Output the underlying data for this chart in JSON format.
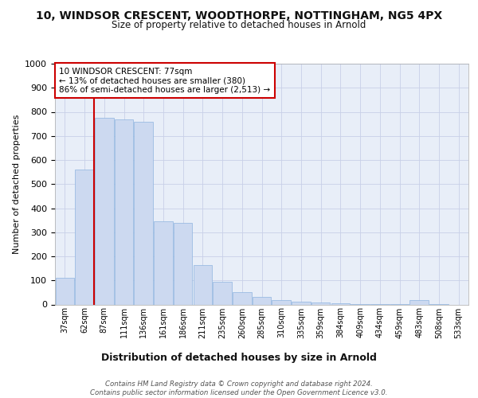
{
  "title_line1": "10, WINDSOR CRESCENT, WOODTHORPE, NOTTINGHAM, NG5 4PX",
  "title_line2": "Size of property relative to detached houses in Arnold",
  "xlabel": "Distribution of detached houses by size in Arnold",
  "ylabel": "Number of detached properties",
  "categories": [
    "37sqm",
    "62sqm",
    "87sqm",
    "111sqm",
    "136sqm",
    "161sqm",
    "186sqm",
    "211sqm",
    "235sqm",
    "260sqm",
    "285sqm",
    "310sqm",
    "335sqm",
    "359sqm",
    "384sqm",
    "409sqm",
    "434sqm",
    "459sqm",
    "483sqm",
    "508sqm",
    "533sqm"
  ],
  "values": [
    110,
    560,
    775,
    770,
    760,
    345,
    340,
    163,
    93,
    50,
    30,
    18,
    12,
    8,
    5,
    3,
    2,
    1,
    18,
    2,
    0
  ],
  "bar_color": "#ccd9f0",
  "bar_edge_color": "#8fb4e0",
  "vline_x": 1.5,
  "vline_color": "#cc0000",
  "annotation_text": "10 WINDSOR CRESCENT: 77sqm\n← 13% of detached houses are smaller (380)\n86% of semi-detached houses are larger (2,513) →",
  "annotation_box_facecolor": "#ffffff",
  "annotation_box_edgecolor": "#cc0000",
  "ylim": [
    0,
    1000
  ],
  "yticks": [
    0,
    100,
    200,
    300,
    400,
    500,
    600,
    700,
    800,
    900,
    1000
  ],
  "footnote": "Contains HM Land Registry data © Crown copyright and database right 2024.\nContains public sector information licensed under the Open Government Licence v3.0.",
  "bg_color": "#ffffff",
  "plot_bg_color": "#e8eef8",
  "grid_color": "#c8d0e8"
}
